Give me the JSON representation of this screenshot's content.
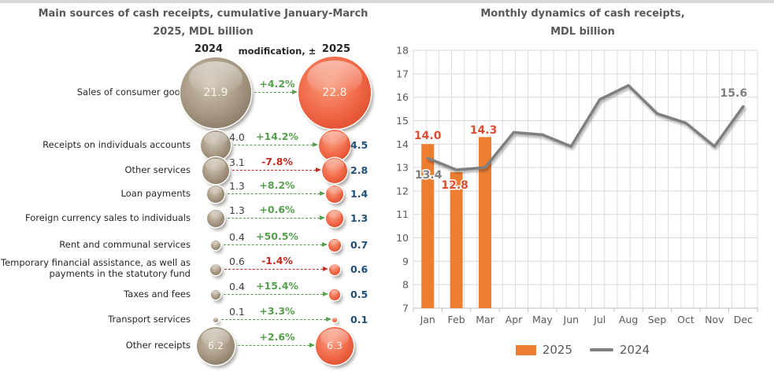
{
  "page": {
    "background": "#ffffff",
    "top_strip_color": "#d9d9d9"
  },
  "left_chart": {
    "title_lines": [
      "Main sources of cash receipts, cumulative January-March",
      "2025,  MDL billion"
    ],
    "column_headers": {
      "year_2024": "2024",
      "modification": "modification, ±",
      "year_2025": "2025"
    }
  },
  "right_chart": {
    "title_lines": [
      "Monthly dynamics of cash receipts,",
      "MDL billion"
    ],
    "legend": [
      {
        "label": "2025",
        "type": "bar",
        "color": "#ED7D31"
      },
      {
        "label": "2024",
        "type": "line",
        "color": "#7F7F7F"
      }
    ]
  },
  "colors": {
    "bubble_2024": "#A89A85",
    "bubble_2025": "#F16A4A",
    "positive_modification": "#55A04B",
    "negative_modification": "#C42B20",
    "value_2025_text": "#1F4E79",
    "value_2024_text": "#3F3F3F",
    "bar_2025": "#ED7D31",
    "line_2024": "#7F7F7F",
    "bar_label": "#DE4B32",
    "line_label": "#7F7F7F",
    "title_text": "#595959",
    "gridline": "#D9D9D9"
  },
  "chart_data": [
    {
      "type": "bubble-comparison",
      "title": "Main sources of cash receipts, cumulative January-March 2025,  MDL billion",
      "columns": [
        "2024",
        "modification, ±",
        "2025"
      ],
      "rows": [
        {
          "label": "Sales of consumer goods",
          "value_2024": 21.9,
          "modification": "+4.2%",
          "value_2025": 22.8
        },
        {
          "label": "Receipts on individuals accounts",
          "value_2024": 4.0,
          "modification": "+14.2%",
          "value_2025": 4.5
        },
        {
          "label": "Other services",
          "value_2024": 3.1,
          "modification": "-7.8%",
          "value_2025": 2.8
        },
        {
          "label": "Loan payments",
          "value_2024": 1.3,
          "modification": "+8.2%",
          "value_2025": 1.4
        },
        {
          "label": "Foreign currency sales to individuals",
          "value_2024": 1.3,
          "modification": "+0.6%",
          "value_2025": 1.3
        },
        {
          "label": "Rent and communal services",
          "value_2024": 0.4,
          "modification": "+50.5%",
          "value_2025": 0.7
        },
        {
          "label": "Temporary financial assistance, as well as\npayments in the statutory fund",
          "value_2024": 0.6,
          "modification": "-1.4%",
          "value_2025": 0.6
        },
        {
          "label": "Taxes and fees",
          "value_2024": 0.4,
          "modification": "+15.4%",
          "value_2025": 0.5
        },
        {
          "label": "Transport services",
          "value_2024": 0.1,
          "modification": "+3.3%",
          "value_2025": 0.1
        },
        {
          "label": "Other receipts",
          "value_2024": 6.2,
          "modification": "+2.6%",
          "value_2025": 6.3
        }
      ]
    },
    {
      "type": "bar+line",
      "title": "Monthly dynamics of cash receipts, MDL billion",
      "categories": [
        "Jan",
        "Feb",
        "Mar",
        "Apr",
        "May",
        "Jun",
        "Jul",
        "Aug",
        "Sep",
        "Oct",
        "Nov",
        "Dec"
      ],
      "series": [
        {
          "name": "2025",
          "type": "bar",
          "color": "#ED7D31",
          "values": [
            14.0,
            12.8,
            14.3,
            null,
            null,
            null,
            null,
            null,
            null,
            null,
            null,
            null
          ]
        },
        {
          "name": "2024",
          "type": "line",
          "color": "#7F7F7F",
          "values": [
            13.4,
            12.9,
            13.0,
            14.5,
            14.4,
            13.9,
            15.9,
            16.5,
            15.3,
            14.9,
            13.9,
            15.6
          ]
        }
      ],
      "ylim": [
        7,
        18
      ],
      "ytick_step": 1,
      "grid": true,
      "legend_position": "bottom",
      "data_labels": {
        "bar_labels": {
          "Jan": "14.0",
          "Feb": "12.8",
          "Mar": "14.3"
        },
        "line_labels": {
          "Jan": "13.4",
          "Dec": "15.6"
        }
      }
    }
  ]
}
